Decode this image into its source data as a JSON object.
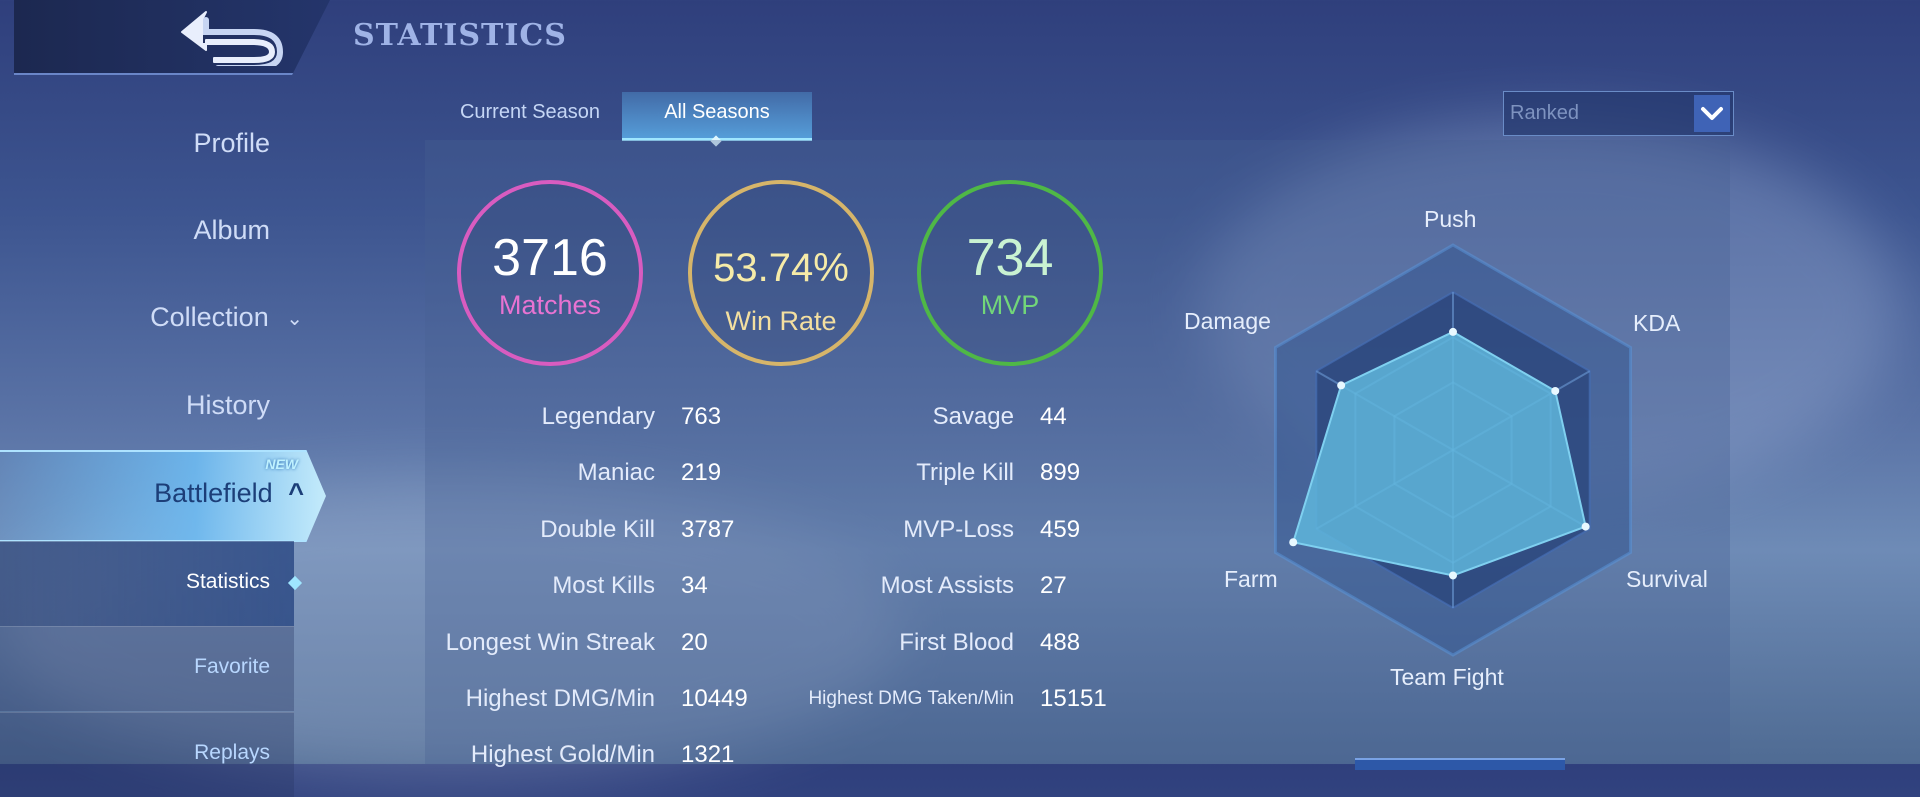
{
  "header": {
    "title": "STATISTICS",
    "back_icon": "back-arrow-icon"
  },
  "sidebar": {
    "items": [
      {
        "label": "Profile"
      },
      {
        "label": "Album"
      },
      {
        "label": "Collection"
      },
      {
        "label": "History"
      }
    ],
    "battlefield": {
      "label": "Battlefield",
      "badge": "NEW"
    },
    "sub_items": [
      {
        "label": "Statistics",
        "active": true
      },
      {
        "label": "Favorite"
      },
      {
        "label": "Replays"
      }
    ]
  },
  "tabs": [
    {
      "label": "Current Season",
      "active": false
    },
    {
      "label": "All Seasons",
      "active": true
    }
  ],
  "mode_select": {
    "value": "Ranked"
  },
  "summary": {
    "matches": {
      "value": "3716",
      "label": "Matches",
      "color": "#d85cc0"
    },
    "win_rate": {
      "value": "53.74%",
      "label": "Win Rate",
      "color": "#d6b56a"
    },
    "mvp": {
      "value": "734",
      "label": "MVP",
      "color": "#4fb846"
    }
  },
  "stats_left": [
    {
      "label": "Legendary",
      "value": "763"
    },
    {
      "label": "Maniac",
      "value": "219"
    },
    {
      "label": "Double Kill",
      "value": "3787"
    },
    {
      "label": "Most Kills",
      "value": "34"
    },
    {
      "label": "Longest Win Streak",
      "value": "20"
    },
    {
      "label": "Highest DMG/Min",
      "value": "10449"
    },
    {
      "label": "Highest Gold/Min",
      "value": "1321"
    }
  ],
  "stats_right": [
    {
      "label": "Savage",
      "value": "44"
    },
    {
      "label": "Triple Kill",
      "value": "899"
    },
    {
      "label": "MVP-Loss",
      "value": "459"
    },
    {
      "label": "Most Assists",
      "value": "27"
    },
    {
      "label": "First Blood",
      "value": "488"
    },
    {
      "label": "Highest DMG Taken/Min",
      "value": "15151"
    }
  ],
  "radar": {
    "axes": [
      "Push",
      "KDA",
      "Survival",
      "Team Fight",
      "Farm",
      "Damage"
    ],
    "levels": [
      0.64,
      0.64,
      0.83,
      0.68,
      1.0,
      0.7
    ],
    "fill_color": "#5fb6dc"
  }
}
